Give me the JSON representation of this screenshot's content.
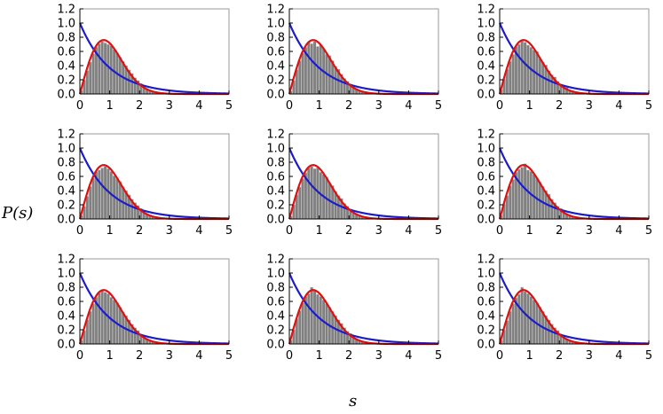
{
  "labels": {
    "ylabel": "P(s)",
    "xlabel": "s"
  },
  "colors": {
    "histogram": "#808080",
    "poisson": "#1c1cc8",
    "wigner": "#e01010",
    "frame": "#999999"
  },
  "chart_data": {
    "type": "bar",
    "layout": "3x3 grid of panels",
    "xlim": [
      0,
      5
    ],
    "ylim": [
      0,
      1.2
    ],
    "xticks": [
      "0",
      "1",
      "2",
      "3",
      "4",
      "5"
    ],
    "yticks": [
      "0.0",
      "0.2",
      "0.4",
      "0.6",
      "0.8",
      "1.0",
      "1.2"
    ],
    "bin_width": 0.1,
    "bin_centers": [
      0.05,
      0.15,
      0.25,
      0.35,
      0.45,
      0.55,
      0.65,
      0.75,
      0.85,
      0.95,
      1.05,
      1.15,
      1.25,
      1.35,
      1.45,
      1.55,
      1.65,
      1.75,
      1.85,
      1.95,
      2.05,
      2.15,
      2.25,
      2.35,
      2.45,
      2.55,
      2.65,
      2.75,
      2.85,
      2.95
    ],
    "series": [
      {
        "type": "line",
        "color": "blue",
        "curve": "exp(-s)"
      },
      {
        "type": "line",
        "color": "red",
        "curve": "(pi/2) s exp(-pi s^2/4)"
      }
    ],
    "panels": [
      {
        "heights": [
          0.05,
          0.2,
          0.33,
          0.45,
          0.57,
          0.66,
          0.71,
          0.74,
          0.72,
          0.7,
          0.68,
          0.63,
          0.58,
          0.52,
          0.46,
          0.4,
          0.34,
          0.29,
          0.23,
          0.19,
          0.15,
          0.11,
          0.08,
          0.06,
          0.04,
          0.03,
          0.02,
          0.02,
          0.01,
          0.01
        ]
      },
      {
        "heights": [
          0.04,
          0.19,
          0.34,
          0.47,
          0.58,
          0.66,
          0.73,
          0.71,
          0.74,
          0.67,
          0.69,
          0.64,
          0.56,
          0.54,
          0.47,
          0.39,
          0.35,
          0.28,
          0.22,
          0.18,
          0.14,
          0.1,
          0.08,
          0.05,
          0.04,
          0.03,
          0.02,
          0.01,
          0.01,
          0.01
        ]
      },
      {
        "heights": [
          0.06,
          0.21,
          0.35,
          0.46,
          0.56,
          0.67,
          0.7,
          0.75,
          0.73,
          0.69,
          0.66,
          0.62,
          0.6,
          0.5,
          0.45,
          0.41,
          0.33,
          0.27,
          0.24,
          0.18,
          0.14,
          0.12,
          0.09,
          0.06,
          0.05,
          0.03,
          0.02,
          0.02,
          0.01,
          0.01
        ]
      },
      {
        "heights": [
          0.05,
          0.18,
          0.32,
          0.46,
          0.58,
          0.67,
          0.69,
          0.72,
          0.74,
          0.71,
          0.67,
          0.61,
          0.57,
          0.53,
          0.45,
          0.4,
          0.34,
          0.28,
          0.23,
          0.19,
          0.15,
          0.11,
          0.08,
          0.06,
          0.04,
          0.03,
          0.02,
          0.02,
          0.01,
          0.01
        ]
      },
      {
        "heights": [
          0.04,
          0.2,
          0.34,
          0.45,
          0.57,
          0.65,
          0.72,
          0.74,
          0.71,
          0.72,
          0.66,
          0.63,
          0.59,
          0.51,
          0.47,
          0.39,
          0.33,
          0.29,
          0.22,
          0.18,
          0.14,
          0.11,
          0.08,
          0.06,
          0.04,
          0.03,
          0.02,
          0.01,
          0.01,
          0.01
        ]
      },
      {
        "heights": [
          0.05,
          0.21,
          0.33,
          0.47,
          0.56,
          0.66,
          0.7,
          0.73,
          0.78,
          0.69,
          0.67,
          0.63,
          0.58,
          0.52,
          0.46,
          0.4,
          0.35,
          0.28,
          0.23,
          0.18,
          0.15,
          0.11,
          0.08,
          0.06,
          0.04,
          0.03,
          0.02,
          0.02,
          0.01,
          0.01
        ]
      },
      {
        "heights": [
          0.05,
          0.19,
          0.34,
          0.46,
          0.57,
          0.66,
          0.72,
          0.75,
          0.73,
          0.71,
          0.66,
          0.62,
          0.58,
          0.52,
          0.45,
          0.4,
          0.34,
          0.28,
          0.23,
          0.19,
          0.14,
          0.11,
          0.08,
          0.06,
          0.04,
          0.03,
          0.02,
          0.02,
          0.01,
          0.01
        ]
      },
      {
        "heights": [
          0.05,
          0.2,
          0.35,
          0.47,
          0.58,
          0.67,
          0.71,
          0.8,
          0.76,
          0.7,
          0.67,
          0.62,
          0.57,
          0.52,
          0.46,
          0.4,
          0.34,
          0.29,
          0.23,
          0.18,
          0.15,
          0.11,
          0.08,
          0.06,
          0.04,
          0.03,
          0.02,
          0.01,
          0.01,
          0.01
        ]
      },
      {
        "heights": [
          0.05,
          0.2,
          0.33,
          0.46,
          0.57,
          0.65,
          0.7,
          0.8,
          0.74,
          0.71,
          0.67,
          0.62,
          0.58,
          0.52,
          0.46,
          0.4,
          0.34,
          0.28,
          0.23,
          0.19,
          0.14,
          0.11,
          0.08,
          0.06,
          0.04,
          0.03,
          0.02,
          0.02,
          0.01,
          0.01
        ]
      }
    ]
  }
}
